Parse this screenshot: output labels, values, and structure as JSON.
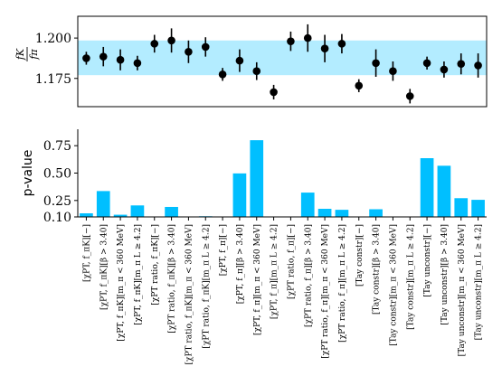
{
  "chart_data": [
    {
      "type": "scatter",
      "ylabel_num": "f_K",
      "ylabel_den": "f_π",
      "ylim": [
        1.1575,
        1.2135
      ],
      "yticks": [
        1.175,
        1.2
      ],
      "ytick_labels": [
        "1.175",
        "1.200"
      ],
      "band": {
        "center": 1.1875,
        "low": 1.177,
        "high": 1.1985,
        "color": "#b3ecff"
      },
      "values": [
        1.1875,
        1.1885,
        1.1865,
        1.1845,
        1.1965,
        1.1985,
        1.1915,
        1.1945,
        1.1775,
        1.186,
        1.1795,
        1.1665,
        1.198,
        1.2,
        1.1935,
        1.1965,
        1.1705,
        1.1845,
        1.1795,
        1.164,
        1.1845,
        1.1805,
        1.184,
        1.183
      ],
      "errors": [
        0.004,
        0.006,
        0.0065,
        0.0045,
        0.0055,
        0.0075,
        0.007,
        0.006,
        0.004,
        0.007,
        0.0055,
        0.0045,
        0.006,
        0.0085,
        0.0085,
        0.006,
        0.004,
        0.0085,
        0.006,
        0.0045,
        0.004,
        0.005,
        0.0065,
        0.0075
      ],
      "marker_color": "#000000"
    },
    {
      "type": "bar",
      "ylabel": "p-value",
      "ylim": [
        0.1,
        0.9
      ],
      "yticks": [
        0.1,
        0.25,
        0.5,
        0.75
      ],
      "ytick_labels": [
        "0.10",
        "0.25",
        "0.50",
        "0.75"
      ],
      "bar_color": "#00bfff",
      "values": [
        0.133,
        0.336,
        0.12,
        0.205,
        0.1,
        0.191,
        0.1,
        0.106,
        0.1,
        0.497,
        0.8,
        0.1,
        0.1,
        0.322,
        0.174,
        0.165,
        0.1,
        0.17,
        0.1,
        0.1,
        0.636,
        0.567,
        0.271,
        0.256
      ]
    }
  ],
  "categories": [
    "[χPT, f_πK][−]",
    "[χPT, f_πK][β > 3.40]",
    "[χPT, f_πK][m_π < 360 MeV]",
    "[χPT, f_πK][m_π L ≥ 4.2]",
    "[χPT ratio, f_πK][−]",
    "[χPT ratio, f_πK][β > 3.40]",
    "[χPT ratio, f_πK][m_π < 360 MeV]",
    "[χPT ratio, f_πK][m_π L ≥ 4.2]",
    "[χPT, f_π][−]",
    "[χPT, f_π][β > 3.40]",
    "[χPT, f_π][m_π < 360 MeV]",
    "[χPT, f_π][m_π L ≥ 4.2]",
    "[χPT ratio, f_π][−]",
    "[χPT ratio, f_π][β > 3.40]",
    "[χPT ratio, f_π][m_π < 360 MeV]",
    "[χPT ratio, f_π][m_π L ≥ 4.2]",
    "[Tay constr][−]",
    "[Tay constr][β > 3.40]",
    "[Tay constr][m_π < 360 MeV]",
    "[Tay constr][m_π L ≥ 4.2]",
    "[Tay unconstr][−]",
    "[Tay unconstr][β > 3.40]",
    "[Tay unconstr][m_π < 360 MeV]",
    "[Tay unconstr][m_π L ≥ 4.2]"
  ]
}
